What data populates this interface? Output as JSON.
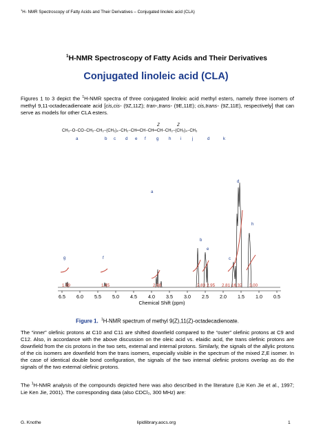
{
  "header": {
    "running_title_sup": "1",
    "running_title": "H- NMR Spectroscopy of Fatty Acids and Their Derivatives – Conjugated linoleic acid (CLA)"
  },
  "series": {
    "sup": "1",
    "text": "H-NMR Spectroscopy of Fatty Acids and Their Derivatives"
  },
  "title": "Conjugated linoleic acid (CLA)",
  "intro": {
    "p1a": "Figures 1 to 3 depict the ",
    "p1sup": "1",
    "p1b": "H-NMR spectra of three conjugated linoleic acid methyl esters, namely three isomers of methyl 9,11-octadecadienoate acid [",
    "iso1": "cis,cis-",
    "iso1b": " (9Z,11Z); ",
    "iso2": "tran-,trans-",
    "iso2b": " (9E,11E); ",
    "iso3": "cis,trans-",
    "iso3b": " (9Z,11E), respectively] that can serve as models for other CLA esters."
  },
  "figure": {
    "structure": {
      "formula": "CH₃−O−CO−CH₂−CH₂−(CH₂)₄−CH₂−CH═CH−CH═CH−CH₂−(CH₂)₄−CH₃",
      "z_labels": [
        "Z",
        "Z"
      ],
      "atom_labels": [
        "a",
        "b",
        "c",
        "d",
        "e",
        "f",
        "g",
        "h",
        "i",
        "j",
        "d",
        "k"
      ]
    },
    "peak_labels": [
      "g",
      "f",
      "a",
      "b",
      "e",
      "c",
      "d",
      "h"
    ],
    "integrals": [
      "1.39",
      "1.45",
      "2.98",
      "2.83",
      "2.95",
      "2.81",
      "16.32",
      "3.00"
    ],
    "x_ticks": [
      "6.5",
      "6.0",
      "5.5",
      "5.0",
      "4.5",
      "4.0",
      "3.5",
      "3.0",
      "2.5",
      "2.0",
      "1.5",
      "1.0",
      "0.5"
    ],
    "x_axis_label": "Chemical Shift (ppm)",
    "colors": {
      "spectrum": "#000000",
      "integral": "#c0392b",
      "labels": "#1a3a8c"
    }
  },
  "caption": {
    "label": "Figure 1.",
    "sup": "1",
    "text": "H-NMR spectrum of methyl 9(Z),11(Z)-octadecadienoate."
  },
  "body2": {
    "text": "The “inner” olefinic protons at C10 and C11 are shifted downfield compared to the “outer” olefinic protons at C9 and C12. Also, in accordance with the above discussion on the oleic acid vs. elaidic acid, the trans olefinic protons are downfield from the cis protons in the two sets, external and internal protons. Similarly, the signals of the allylic protons of the cis isomers are downfield from the trans isomers, especially visible in the spectrum of the mixed Z,E isomer. In the case of identical double bond configuration, the signals of the two internal olefinic protons overlap as do the signals of the two external olefinic protons."
  },
  "body3": {
    "a": "The ",
    "sup": "1",
    "b": "H-NMR analysis of the compounds depicted here was also described in the literature (Lie Ken Jie et al., 1997; Lie Ken Jie, 2001). The corresponding data (also CDCl₃, 300 MHz) are:"
  },
  "footer": {
    "left": "G. Knothe",
    "center": "lipidlibrary.aocs.org",
    "right": "1"
  }
}
